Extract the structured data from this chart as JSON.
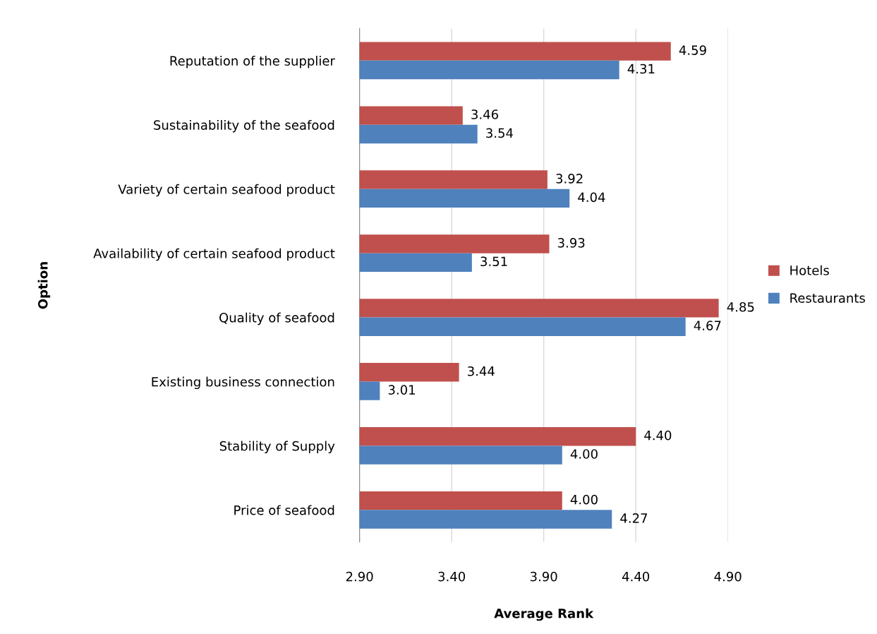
{
  "chart_data": {
    "type": "bar",
    "orientation": "horizontal",
    "xlabel": "Average Rank",
    "ylabel": "Option",
    "categories": [
      "Reputation of the supplier",
      "Sustainability of the seafood",
      "Variety of certain seafood product",
      "Availability of certain seafood product",
      "Quality of seafood",
      "Existing business connection",
      "Stability of Supply",
      "Price of seafood"
    ],
    "series": [
      {
        "name": "Hotels",
        "color": "#c0504d",
        "values": [
          4.59,
          3.46,
          3.92,
          3.93,
          4.85,
          3.44,
          4.4,
          4.0
        ],
        "value_labels": [
          "4.59",
          "3.46",
          "3.92",
          "3.93",
          "4.85",
          "3.44",
          "4.40",
          "4.00"
        ]
      },
      {
        "name": "Restaurants",
        "color": "#4f81bd",
        "values": [
          4.31,
          3.54,
          4.04,
          3.51,
          4.67,
          3.01,
          4.0,
          4.27
        ],
        "value_labels": [
          "4.31",
          "3.54",
          "4.04",
          "3.51",
          "4.67",
          "3.01",
          "4.00",
          "4.27"
        ]
      }
    ],
    "xlim": [
      2.9,
      4.9
    ],
    "xticks": [
      {
        "value": 2.9,
        "label": "2.90"
      },
      {
        "value": 3.4,
        "label": "3.40"
      },
      {
        "value": 3.9,
        "label": "3.90"
      },
      {
        "value": 4.4,
        "label": "4.40"
      },
      {
        "value": 4.9,
        "label": "4.90"
      }
    ],
    "grid": "x",
    "legend": "right"
  }
}
